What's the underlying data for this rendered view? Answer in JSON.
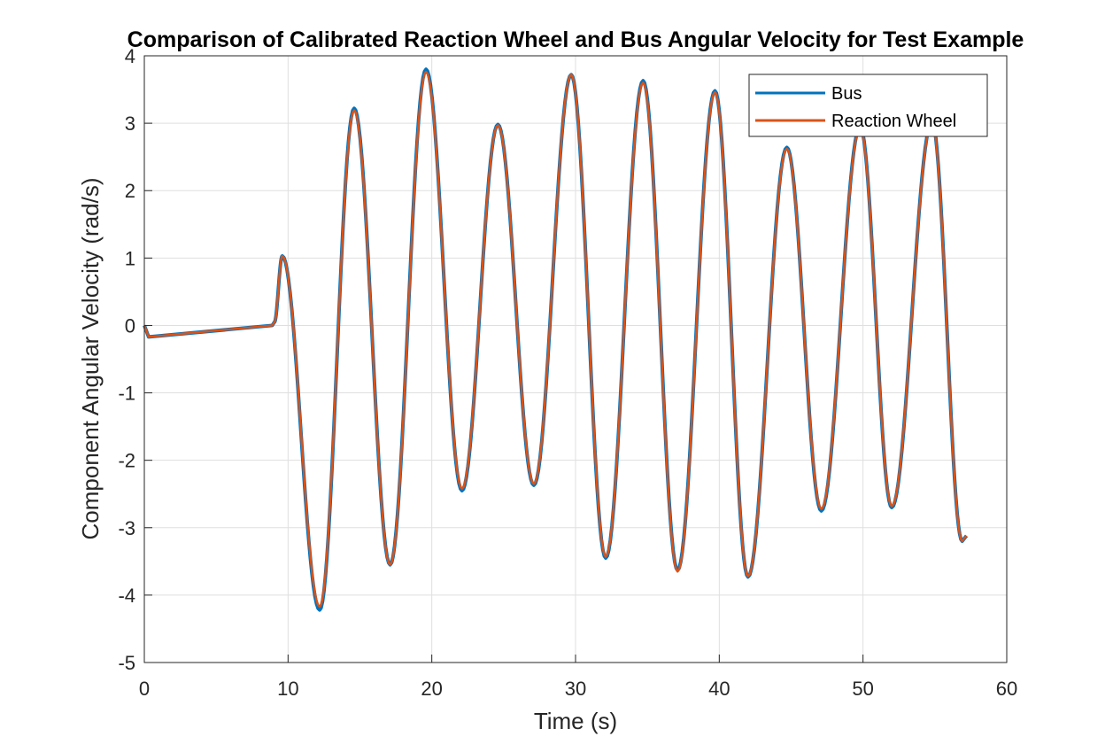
{
  "chart_data": {
    "type": "line",
    "title": "Comparison of Calibrated Reaction Wheel and Bus Angular Velocity for Test Example",
    "xlabel": "Time (s)",
    "ylabel": "Component Angular Velocity (rad/s)",
    "xlim": [
      0,
      60
    ],
    "ylim": [
      -5,
      4
    ],
    "xticks": [
      "0",
      "10",
      "20",
      "30",
      "40",
      "50",
      "60"
    ],
    "yticks": [
      "-5",
      "-4",
      "-3",
      "-2",
      "-1",
      "0",
      "1",
      "2",
      "3",
      "4"
    ],
    "grid": true,
    "legend": "top-right",
    "series": [
      {
        "name": "Bus",
        "color": "#0072BD",
        "x": [
          0,
          0.3,
          8.9,
          9.05,
          9.6,
          12.2,
          14.6,
          17.1,
          19.6,
          22.1,
          24.6,
          27.1,
          29.7,
          32.1,
          34.7,
          37.1,
          39.7,
          42.0,
          44.7,
          47.1,
          49.8,
          52.0,
          54.8,
          56.9,
          57.2
        ],
        "y": [
          0,
          -0.17,
          0,
          0.05,
          1.03,
          -4.22,
          3.22,
          -3.55,
          3.8,
          -2.45,
          2.98,
          -2.37,
          3.72,
          -3.45,
          3.63,
          -3.63,
          3.48,
          -3.73,
          2.64,
          -2.75,
          2.95,
          -2.7,
          3.02,
          -3.2,
          -3.12
        ]
      },
      {
        "name": "Reaction Wheel",
        "color": "#D95319",
        "x": [
          0,
          0.3,
          8.9,
          9.05,
          9.6,
          12.2,
          14.6,
          17.1,
          19.6,
          22.1,
          24.6,
          27.1,
          29.7,
          32.1,
          34.7,
          37.1,
          39.7,
          42.0,
          44.7,
          47.1,
          49.8,
          52.0,
          54.8,
          56.9,
          57.2
        ],
        "y": [
          0,
          -0.17,
          0,
          0.05,
          1.03,
          -4.17,
          3.19,
          -3.55,
          3.76,
          -2.42,
          2.97,
          -2.35,
          3.72,
          -3.43,
          3.6,
          -3.65,
          3.46,
          -3.72,
          2.62,
          -2.72,
          2.93,
          -2.68,
          3.0,
          -3.2,
          -3.12
        ]
      }
    ]
  }
}
